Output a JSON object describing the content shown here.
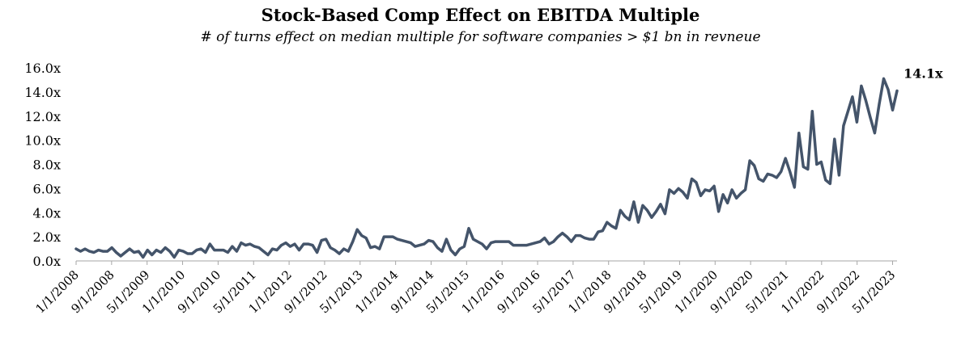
{
  "chart_data": {
    "type": "line",
    "title": "Stock-Based Comp Effect on EBITDA Multiple",
    "subtitle": "# of turns effect on median multiple for software companies > $1 bn in revneue",
    "xlabel": "",
    "ylabel": "",
    "ylim": [
      0,
      16
    ],
    "y_ticks": [
      "0.0x",
      "2.0x",
      "4.0x",
      "6.0x",
      "8.0x",
      "10.0x",
      "12.0x",
      "14.0x",
      "16.0x"
    ],
    "x_tick_labels": [
      "1/1/2008",
      "9/1/2008",
      "5/1/2009",
      "1/1/2010",
      "9/1/2010",
      "5/1/2011",
      "1/1/2012",
      "9/1/2012",
      "5/1/2013",
      "1/1/2014",
      "9/1/2014",
      "5/1/2015",
      "1/1/2016",
      "9/1/2016",
      "5/1/2017",
      "1/1/2018",
      "9/1/2018",
      "5/1/2019",
      "1/1/2020",
      "9/1/2020",
      "5/1/2021",
      "1/1/2022",
      "9/1/2022",
      "5/1/2023"
    ],
    "x_start": "1/1/2008",
    "x_end": "6/1/2023",
    "grid": false,
    "end_label": "14.1x",
    "line_color": "#44546a",
    "series": [
      {
        "values": [
          1.0,
          0.8,
          1.0,
          0.8,
          0.7,
          0.9,
          0.8,
          0.8,
          1.1,
          0.7,
          0.4,
          0.7,
          1.0,
          0.7,
          0.8,
          0.3,
          0.9,
          0.5,
          0.9,
          0.7,
          1.1,
          0.8,
          0.3,
          0.9,
          0.8,
          0.6,
          0.6,
          0.9,
          1.0,
          0.7,
          1.4,
          0.9,
          0.9,
          0.9,
          0.7,
          1.2,
          0.8,
          1.5,
          1.3,
          1.4,
          1.2,
          1.1,
          0.8,
          0.5,
          1.0,
          0.9,
          1.3,
          1.5,
          1.2,
          1.4,
          0.9,
          1.4,
          1.4,
          1.3,
          0.7,
          1.7,
          1.8,
          1.1,
          0.9,
          0.6,
          1.0,
          0.8,
          1.6,
          2.6,
          2.1,
          1.9,
          1.1,
          1.2,
          1.0,
          2.0,
          2.0,
          2.0,
          1.8,
          1.7,
          1.6,
          1.5,
          1.2,
          1.3,
          1.4,
          1.7,
          1.6,
          1.1,
          0.8,
          1.8,
          0.9,
          0.5,
          1.0,
          1.2,
          2.7,
          1.8,
          1.6,
          1.4,
          1.0,
          1.5,
          1.6,
          1.6,
          1.6,
          1.6,
          1.3,
          1.3,
          1.3,
          1.3,
          1.4,
          1.5,
          1.6,
          1.9,
          1.4,
          1.6,
          2.0,
          2.3,
          2.0,
          1.6,
          2.1,
          2.1,
          1.9,
          1.8,
          1.8,
          2.4,
          2.5,
          3.2,
          2.9,
          2.7,
          4.2,
          3.7,
          3.4,
          4.9,
          3.2,
          4.6,
          4.2,
          3.6,
          4.1,
          4.7,
          3.9,
          5.9,
          5.6,
          6.0,
          5.7,
          5.2,
          6.8,
          6.5,
          5.4,
          5.9,
          5.8,
          6.2,
          4.1,
          5.5,
          4.8,
          5.9,
          5.2,
          5.6,
          5.9,
          8.3,
          7.9,
          6.8,
          6.6,
          7.2,
          7.1,
          6.9,
          7.4,
          8.5,
          7.4,
          6.1,
          10.6,
          7.8,
          7.6,
          12.4,
          8.0,
          8.2,
          6.7,
          6.4,
          10.1,
          7.1,
          11.2,
          12.4,
          13.6,
          11.5,
          14.5,
          13.3,
          11.9,
          10.6,
          13.0,
          15.1,
          14.2,
          12.5,
          14.1
        ]
      }
    ]
  }
}
